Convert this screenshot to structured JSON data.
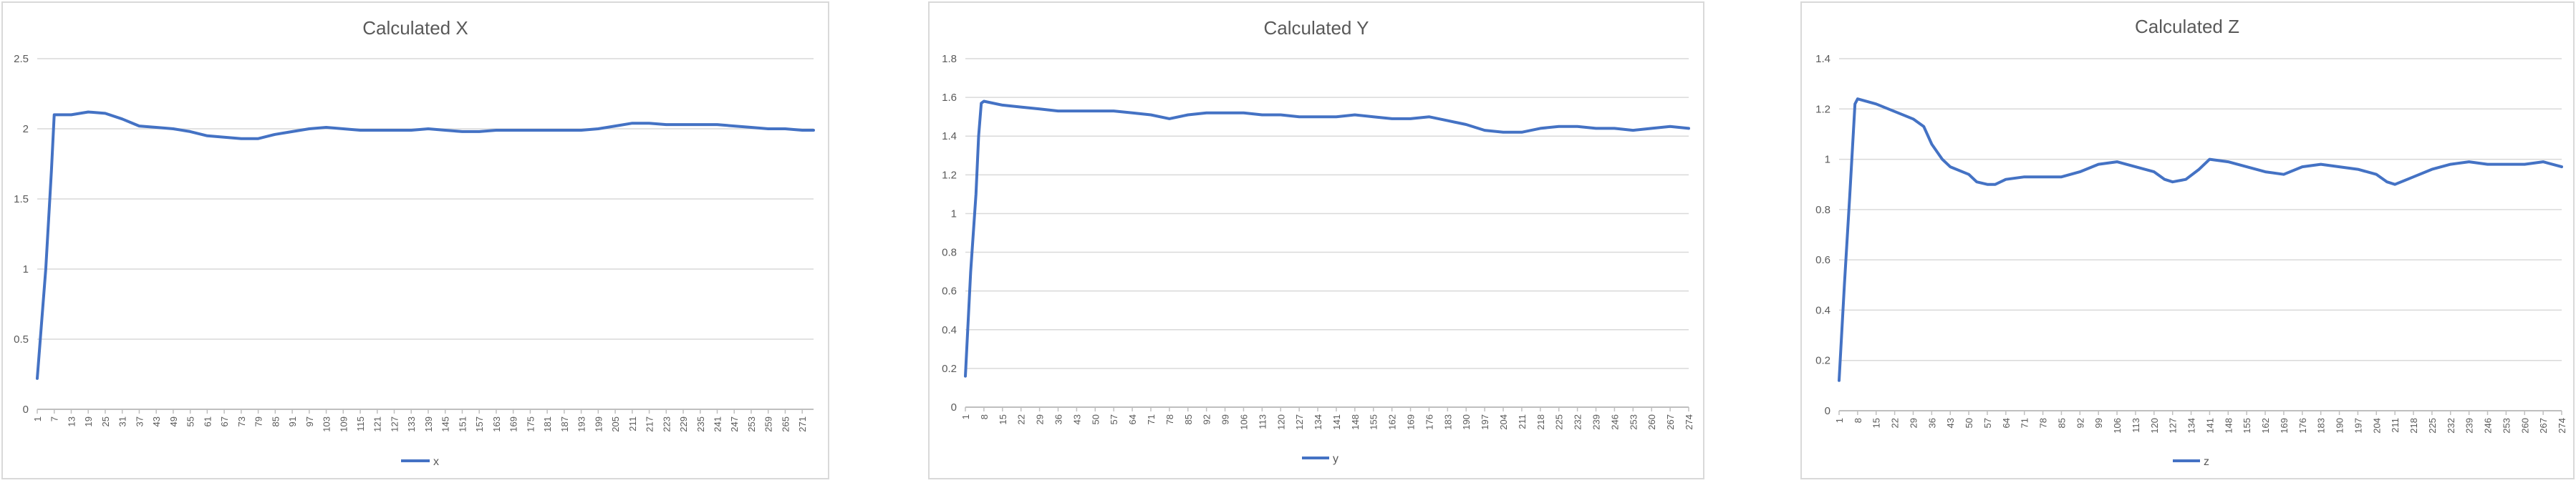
{
  "chart_data": [
    {
      "type": "line",
      "title": "Calculated X",
      "xlabel": "",
      "ylabel": "",
      "ylim": [
        0,
        2.5
      ],
      "yticks": [
        "0",
        "0.5",
        "1",
        "1.5",
        "2",
        "2.5"
      ],
      "ytick_values": [
        0,
        0.5,
        1,
        1.5,
        2,
        2.5
      ],
      "x_range": [
        1,
        275
      ],
      "x_tick_step": 6,
      "grid": true,
      "legend": "bottom",
      "series": [
        {
          "name": "x",
          "color": "#4472c4",
          "points": [
            [
              1,
              0.22
            ],
            [
              4,
              1.0
            ],
            [
              6,
              1.7
            ],
            [
              7,
              2.1
            ],
            [
              13,
              2.1
            ],
            [
              19,
              2.12
            ],
            [
              25,
              2.11
            ],
            [
              31,
              2.07
            ],
            [
              37,
              2.02
            ],
            [
              43,
              2.01
            ],
            [
              49,
              2.0
            ],
            [
              55,
              1.98
            ],
            [
              61,
              1.95
            ],
            [
              67,
              1.94
            ],
            [
              73,
              1.93
            ],
            [
              79,
              1.93
            ],
            [
              85,
              1.96
            ],
            [
              91,
              1.98
            ],
            [
              97,
              2.0
            ],
            [
              103,
              2.01
            ],
            [
              109,
              2.0
            ],
            [
              115,
              1.99
            ],
            [
              121,
              1.99
            ],
            [
              127,
              1.99
            ],
            [
              133,
              1.99
            ],
            [
              139,
              2.0
            ],
            [
              145,
              1.99
            ],
            [
              151,
              1.98
            ],
            [
              157,
              1.98
            ],
            [
              163,
              1.99
            ],
            [
              169,
              1.99
            ],
            [
              175,
              1.99
            ],
            [
              181,
              1.99
            ],
            [
              187,
              1.99
            ],
            [
              193,
              1.99
            ],
            [
              199,
              2.0
            ],
            [
              205,
              2.02
            ],
            [
              211,
              2.04
            ],
            [
              217,
              2.04
            ],
            [
              223,
              2.03
            ],
            [
              229,
              2.03
            ],
            [
              235,
              2.03
            ],
            [
              241,
              2.03
            ],
            [
              247,
              2.02
            ],
            [
              253,
              2.01
            ],
            [
              259,
              2.0
            ],
            [
              265,
              2.0
            ],
            [
              271,
              1.99
            ],
            [
              275,
              1.99
            ]
          ]
        }
      ]
    },
    {
      "type": "line",
      "title": "Calculated Y",
      "xlabel": "",
      "ylabel": "",
      "ylim": [
        0,
        1.8
      ],
      "yticks": [
        "0",
        "0.2",
        "0.4",
        "0.6",
        "0.8",
        "1",
        "1.2",
        "1.4",
        "1.6",
        "1.8"
      ],
      "ytick_values": [
        0,
        0.2,
        0.4,
        0.6,
        0.8,
        1,
        1.2,
        1.4,
        1.6,
        1.8
      ],
      "x_range": [
        1,
        274
      ],
      "x_tick_step": 7,
      "grid": true,
      "legend": "bottom",
      "series": [
        {
          "name": "y",
          "color": "#4472c4",
          "points": [
            [
              1,
              0.16
            ],
            [
              3,
              0.7
            ],
            [
              5,
              1.1
            ],
            [
              6,
              1.4
            ],
            [
              7,
              1.57
            ],
            [
              8,
              1.58
            ],
            [
              15,
              1.56
            ],
            [
              22,
              1.55
            ],
            [
              29,
              1.54
            ],
            [
              36,
              1.53
            ],
            [
              43,
              1.53
            ],
            [
              50,
              1.53
            ],
            [
              57,
              1.53
            ],
            [
              64,
              1.52
            ],
            [
              71,
              1.51
            ],
            [
              78,
              1.49
            ],
            [
              85,
              1.51
            ],
            [
              92,
              1.52
            ],
            [
              99,
              1.52
            ],
            [
              106,
              1.52
            ],
            [
              113,
              1.51
            ],
            [
              120,
              1.51
            ],
            [
              127,
              1.5
            ],
            [
              134,
              1.5
            ],
            [
              141,
              1.5
            ],
            [
              148,
              1.51
            ],
            [
              155,
              1.5
            ],
            [
              162,
              1.49
            ],
            [
              169,
              1.49
            ],
            [
              176,
              1.5
            ],
            [
              183,
              1.48
            ],
            [
              190,
              1.46
            ],
            [
              197,
              1.43
            ],
            [
              204,
              1.42
            ],
            [
              211,
              1.42
            ],
            [
              218,
              1.44
            ],
            [
              225,
              1.45
            ],
            [
              232,
              1.45
            ],
            [
              239,
              1.44
            ],
            [
              246,
              1.44
            ],
            [
              253,
              1.43
            ],
            [
              260,
              1.44
            ],
            [
              267,
              1.45
            ],
            [
              274,
              1.44
            ]
          ]
        }
      ]
    },
    {
      "type": "line",
      "title": "Calculated Z",
      "xlabel": "",
      "ylabel": "",
      "ylim": [
        0,
        1.4
      ],
      "yticks": [
        "0",
        "0.2",
        "0.4",
        "0.6",
        "0.8",
        "1",
        "1.2",
        "1.4"
      ],
      "ytick_values": [
        0,
        0.2,
        0.4,
        0.6,
        0.8,
        1,
        1.2,
        1.4
      ],
      "x_range": [
        1,
        274
      ],
      "x_tick_step": 7,
      "grid": true,
      "legend": "bottom",
      "series": [
        {
          "name": "z",
          "color": "#4472c4",
          "points": [
            [
              1,
              0.12
            ],
            [
              3,
              0.5
            ],
            [
              5,
              0.85
            ],
            [
              7,
              1.22
            ],
            [
              8,
              1.24
            ],
            [
              15,
              1.22
            ],
            [
              22,
              1.19
            ],
            [
              29,
              1.16
            ],
            [
              33,
              1.13
            ],
            [
              36,
              1.06
            ],
            [
              40,
              1.0
            ],
            [
              43,
              0.97
            ],
            [
              50,
              0.94
            ],
            [
              53,
              0.91
            ],
            [
              57,
              0.9
            ],
            [
              60,
              0.9
            ],
            [
              64,
              0.92
            ],
            [
              71,
              0.93
            ],
            [
              78,
              0.93
            ],
            [
              85,
              0.93
            ],
            [
              92,
              0.95
            ],
            [
              99,
              0.98
            ],
            [
              106,
              0.99
            ],
            [
              113,
              0.97
            ],
            [
              120,
              0.95
            ],
            [
              124,
              0.92
            ],
            [
              127,
              0.91
            ],
            [
              132,
              0.92
            ],
            [
              137,
              0.96
            ],
            [
              141,
              1.0
            ],
            [
              148,
              0.99
            ],
            [
              155,
              0.97
            ],
            [
              162,
              0.95
            ],
            [
              169,
              0.94
            ],
            [
              176,
              0.97
            ],
            [
              183,
              0.98
            ],
            [
              190,
              0.97
            ],
            [
              197,
              0.96
            ],
            [
              204,
              0.94
            ],
            [
              208,
              0.91
            ],
            [
              211,
              0.9
            ],
            [
              218,
              0.93
            ],
            [
              225,
              0.96
            ],
            [
              232,
              0.98
            ],
            [
              239,
              0.99
            ],
            [
              246,
              0.98
            ],
            [
              253,
              0.98
            ],
            [
              260,
              0.98
            ],
            [
              267,
              0.99
            ],
            [
              274,
              0.97
            ]
          ]
        }
      ]
    }
  ]
}
